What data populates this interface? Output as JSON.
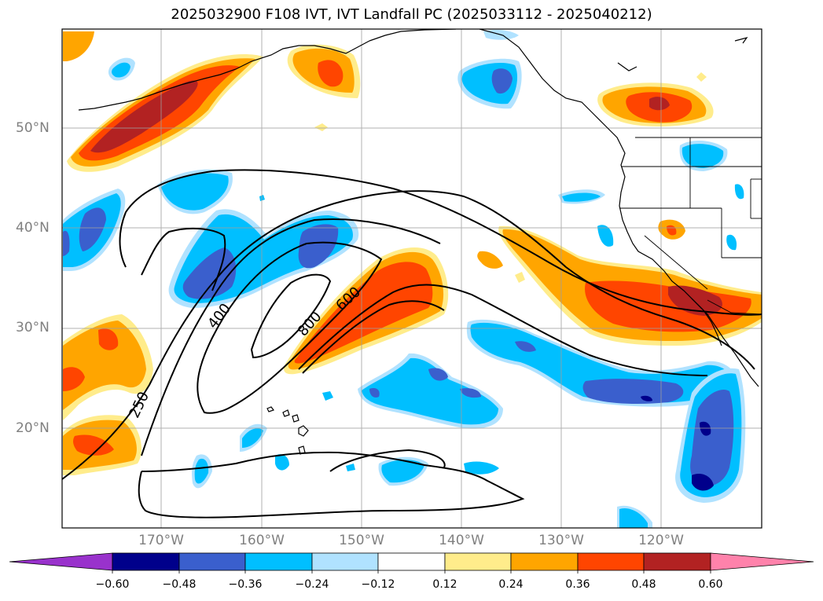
{
  "title": "2025032900 F108 IVT, IVT Landfall PC (2025033112 - 2025040212)",
  "latitude_labels": [
    "50°N",
    "40°N",
    "30°N",
    "20°N"
  ],
  "longitude_labels": [
    "170°W",
    "160°W",
    "150°W",
    "140°W",
    "130°W",
    "120°W"
  ],
  "contour_labels": [
    "250",
    "400",
    "600",
    "800"
  ],
  "colorbar": {
    "ticks": [
      "−0.60",
      "−0.48",
      "−0.36",
      "−0.24",
      "−0.12",
      "0.12",
      "0.24",
      "0.36",
      "0.48",
      "0.60"
    ],
    "colors": [
      "#9932cc",
      "#00008b",
      "#3a5fcd",
      "#00bfff",
      "#b0e2ff",
      "#ffffff",
      "#ffec8b",
      "#ffa500",
      "#ff4500",
      "#b22222",
      "#ff82ab"
    ]
  }
}
